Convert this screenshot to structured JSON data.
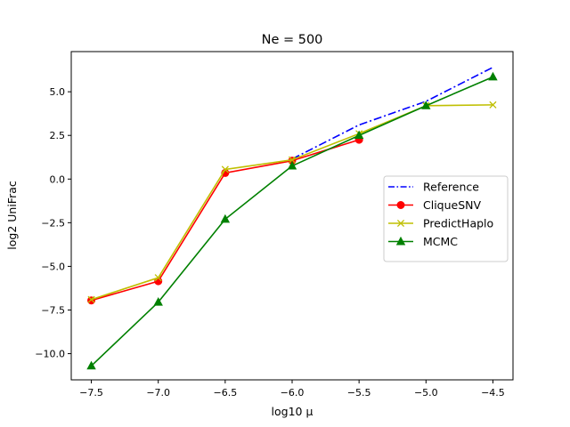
{
  "chart_data": {
    "type": "line",
    "title": "Ne = 500",
    "xlabel": "log10 μ",
    "ylabel": "log2 UniFrac",
    "xlim": [
      -7.65,
      -4.35
    ],
    "ylim": [
      -11.5,
      7.3
    ],
    "xticks": [
      -7.5,
      -7.0,
      -6.5,
      -6.0,
      -5.5,
      -5.0,
      -4.5
    ],
    "xtick_labels": [
      "−7.5",
      "−7.0",
      "−6.5",
      "−6.0",
      "−5.5",
      "−5.0",
      "−4.5"
    ],
    "yticks": [
      -10.0,
      -7.5,
      -5.0,
      -2.5,
      0.0,
      2.5,
      5.0
    ],
    "ytick_labels": [
      "−10.0",
      "−7.5",
      "−5.0",
      "−2.5",
      "0.0",
      "2.5",
      "5.0"
    ],
    "grid": false,
    "legend_position": "center-right",
    "series": [
      {
        "name": "Reference",
        "color": "#0000ff",
        "linestyle": "dashdot",
        "marker": "none",
        "x": [
          -6.0,
          -5.5,
          -5.0,
          -4.5
        ],
        "y": [
          1.15,
          3.1,
          4.45,
          6.4
        ]
      },
      {
        "name": "CliqueSNV",
        "color": "#ff0000",
        "linestyle": "solid",
        "marker": "circle",
        "x": [
          -7.5,
          -7.0,
          -6.5,
          -6.0,
          -5.5
        ],
        "y": [
          -6.95,
          -5.85,
          0.35,
          1.05,
          2.25
        ]
      },
      {
        "name": "PredictHaplo",
        "color": "#bfbf00",
        "linestyle": "solid",
        "marker": "x",
        "x": [
          -7.5,
          -7.0,
          -6.5,
          -6.0,
          -5.5,
          -5.0,
          -4.5
        ],
        "y": [
          -6.9,
          -5.65,
          0.55,
          1.1,
          2.6,
          4.2,
          4.25
        ]
      },
      {
        "name": "MCMC",
        "color": "#008000",
        "linestyle": "solid",
        "marker": "triangle",
        "x": [
          -7.5,
          -7.0,
          -6.5,
          -6.0,
          -5.5,
          -5.0,
          -4.5
        ],
        "y": [
          -10.7,
          -7.05,
          -2.3,
          0.75,
          2.5,
          4.2,
          5.85
        ]
      }
    ]
  }
}
